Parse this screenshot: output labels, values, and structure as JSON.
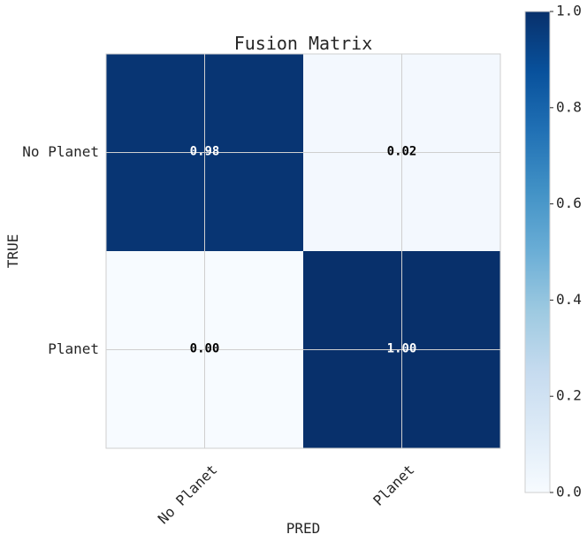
{
  "chart_data": {
    "type": "heatmap",
    "title": "Fusion Matrix",
    "xlabel": "PRED",
    "ylabel": "TRUE",
    "x_categories": [
      "No Planet",
      "Planet"
    ],
    "y_categories": [
      "No Planet",
      "Planet"
    ],
    "values": [
      [
        0.98,
        0.02
      ],
      [
        0.0,
        1.0
      ]
    ],
    "cell_labels": [
      [
        "0.98",
        "0.02"
      ],
      [
        "0.00",
        "1.00"
      ]
    ],
    "colormap": "Blues",
    "color_range": [
      0.0,
      1.0
    ],
    "colorbar_ticks": [
      "0.0",
      "0.2",
      "0.4",
      "0.6",
      "0.8",
      "1.0"
    ],
    "grid": true,
    "colors": {
      "low": "#f7fbff",
      "high": "#08306b",
      "dark_text": "#000000",
      "light_text": "#ffffff"
    }
  }
}
